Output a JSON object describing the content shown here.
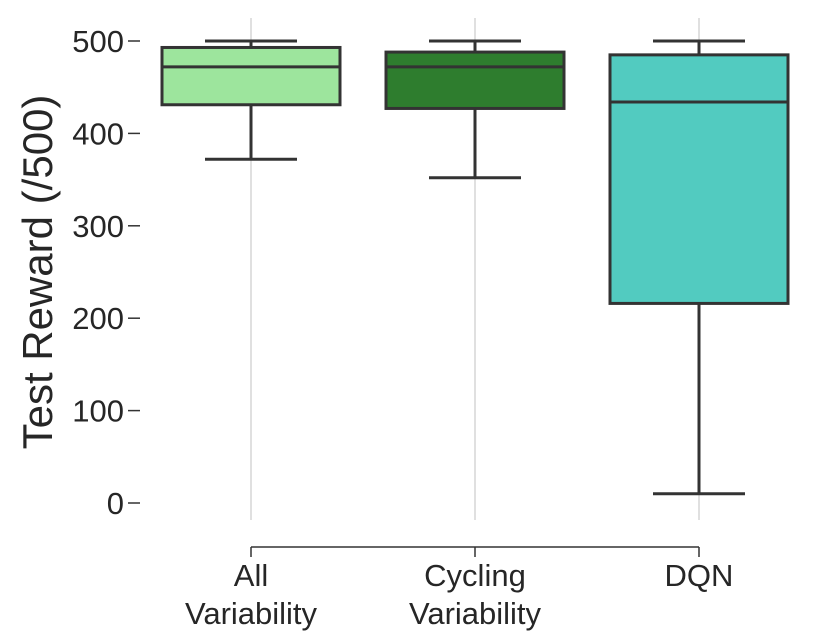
{
  "chart_data": {
    "type": "box",
    "title": "",
    "xlabel": "",
    "ylabel": "Test Reward (/500)",
    "ylim": [
      -40,
      520
    ],
    "yticks": [
      0,
      100,
      200,
      300,
      400,
      500
    ],
    "ytick_labels": [
      "0",
      "100",
      "200",
      "300",
      "400",
      "500"
    ],
    "grid": "vertical lines at categories",
    "categories": [
      {
        "label_lines": [
          "All",
          "Variability"
        ],
        "color": "#9de59d",
        "whisker_low": 372,
        "q1": 431,
        "median": 472,
        "q3": 493,
        "whisker_high": 500
      },
      {
        "label_lines": [
          "Cycling",
          "Variability"
        ],
        "color": "#2e7d2e",
        "whisker_low": 352,
        "q1": 427,
        "median": 472,
        "q3": 488,
        "whisker_high": 500
      },
      {
        "label_lines": [
          "DQN"
        ],
        "color": "#52cbc0",
        "whisker_low": 10,
        "q1": 216,
        "median": 434,
        "q3": 485,
        "whisker_high": 500
      }
    ]
  }
}
